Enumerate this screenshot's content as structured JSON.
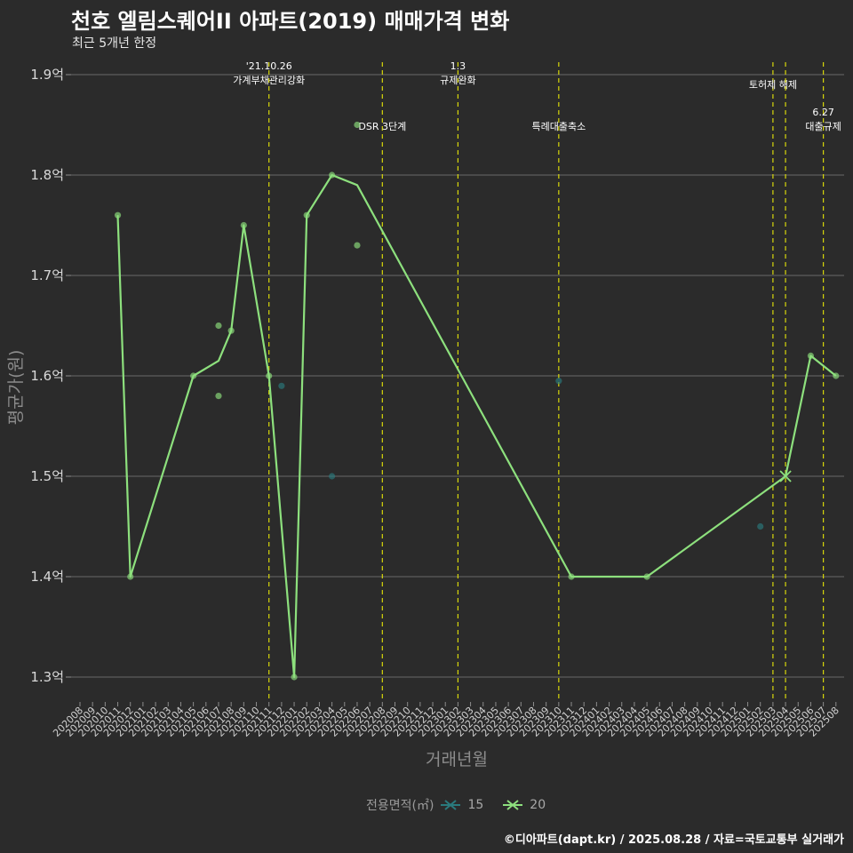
{
  "title": "천호 엘림스퀘어II 아파트(2019) 매매가격 변화",
  "subtitle": "최근 5개년 한정",
  "caption": "©디아파트(dapt.kr) / 2025.08.28 / 자료=국토교통부 실거래가",
  "legend": {
    "title": "전용면적(㎡)",
    "items": [
      {
        "label": "15",
        "color": "#2a7a7d"
      },
      {
        "label": "20",
        "color": "#8de07d"
      }
    ]
  },
  "chart_data": {
    "type": "line",
    "xlabel": "거래년월",
    "ylabel": "평균가(원)",
    "categories": [
      "202008",
      "202009",
      "202010",
      "202011",
      "202012",
      "202101",
      "202102",
      "202103",
      "202104",
      "202105",
      "202106",
      "202107",
      "202108",
      "202109",
      "202110",
      "202111",
      "202112",
      "202201",
      "202202",
      "202203",
      "202204",
      "202205",
      "202206",
      "202207",
      "202208",
      "202209",
      "202210",
      "202211",
      "202212",
      "202301",
      "202302",
      "202303",
      "202304",
      "202305",
      "202306",
      "202307",
      "202308",
      "202309",
      "202310",
      "202311",
      "202312",
      "202401",
      "202402",
      "202403",
      "202404",
      "202405",
      "202406",
      "202407",
      "202408",
      "202409",
      "202410",
      "202411",
      "202412",
      "202501",
      "202502",
      "202503",
      "202504",
      "202505",
      "202506",
      "202507",
      "202508"
    ],
    "y_ticks": [
      {
        "value": 1.3,
        "label": "1.3억"
      },
      {
        "value": 1.4,
        "label": "1.4억"
      },
      {
        "value": 1.5,
        "label": "1.5억"
      },
      {
        "value": 1.6,
        "label": "1.6억"
      },
      {
        "value": 1.7,
        "label": "1.7억"
      },
      {
        "value": 1.8,
        "label": "1.8억"
      },
      {
        "value": 1.9,
        "label": "1.9억"
      }
    ],
    "ylim": [
      1.27,
      1.92
    ],
    "grid": true,
    "legend_position": "bottom",
    "series": [
      {
        "name": "20",
        "color": "#8de07d",
        "line": [
          {
            "x": "202011",
            "y": 1.76
          },
          {
            "x": "202012",
            "y": 1.4
          },
          {
            "x": "202105",
            "y": 1.6
          },
          {
            "x": "202107",
            "y": 1.615
          },
          {
            "x": "202108",
            "y": 1.645
          },
          {
            "x": "202109",
            "y": 1.75
          },
          {
            "x": "202111",
            "y": 1.6
          },
          {
            "x": "202201",
            "y": 1.3
          },
          {
            "x": "202202",
            "y": 1.76
          },
          {
            "x": "202204",
            "y": 1.8
          },
          {
            "x": "202206",
            "y": 1.79
          },
          {
            "x": "202311",
            "y": 1.4
          },
          {
            "x": "202405",
            "y": 1.4
          },
          {
            "x": "202504",
            "y": 1.5
          },
          {
            "x": "202506",
            "y": 1.62
          },
          {
            "x": "202508",
            "y": 1.6
          }
        ],
        "points": [
          {
            "x": "202011",
            "y": 1.76
          },
          {
            "x": "202012",
            "y": 1.4
          },
          {
            "x": "202105",
            "y": 1.6
          },
          {
            "x": "202107",
            "y": 1.65
          },
          {
            "x": "202107",
            "y": 1.58
          },
          {
            "x": "202108",
            "y": 1.645
          },
          {
            "x": "202109",
            "y": 1.75
          },
          {
            "x": "202111",
            "y": 1.6
          },
          {
            "x": "202201",
            "y": 1.3
          },
          {
            "x": "202202",
            "y": 1.76
          },
          {
            "x": "202204",
            "y": 1.8
          },
          {
            "x": "202206",
            "y": 1.73
          },
          {
            "x": "202206",
            "y": 1.85
          },
          {
            "x": "202311",
            "y": 1.4
          },
          {
            "x": "202405",
            "y": 1.4
          },
          {
            "x": "202506",
            "y": 1.62
          },
          {
            "x": "202508",
            "y": 1.6
          }
        ],
        "cross_points": [
          {
            "x": "202504",
            "y": 1.5
          }
        ]
      },
      {
        "name": "15",
        "color": "#2a7a7d",
        "points": [
          {
            "x": "202112",
            "y": 1.59
          },
          {
            "x": "202204",
            "y": 1.5
          },
          {
            "x": "202310",
            "y": 1.595
          },
          {
            "x": "202502",
            "y": 1.45
          }
        ]
      }
    ],
    "events": [
      {
        "x": "202111",
        "lines": [
          "'21.10.26",
          "가계부채관리강화"
        ],
        "row": 1
      },
      {
        "x": "202208",
        "lines": [
          "DSR 3단계"
        ],
        "row": 2
      },
      {
        "x": "202302",
        "lines": [
          "1.3",
          "규제완화"
        ],
        "row": 1
      },
      {
        "x": "202310",
        "lines": [
          "특례대출축소"
        ],
        "row": 2
      },
      {
        "x": "202503",
        "lines": [
          "토허제 해제"
        ],
        "row": 1
      },
      {
        "x": "202504",
        "lines": [],
        "row": 1
      },
      {
        "x": "202507",
        "lines": [
          "6.27",
          "대출규제"
        ],
        "row": 2
      }
    ]
  }
}
